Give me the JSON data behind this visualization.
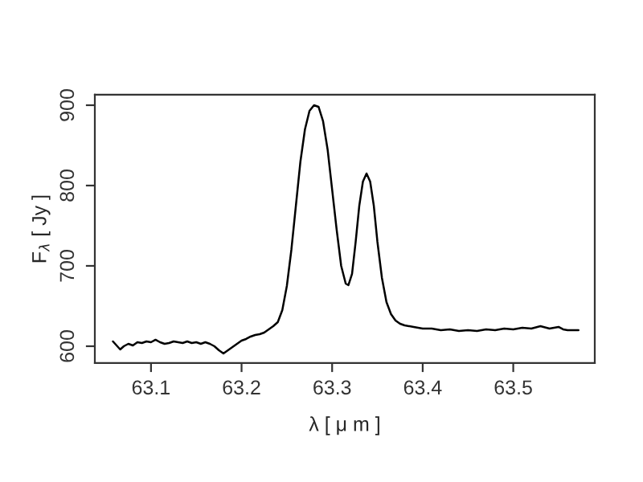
{
  "chart_data": {
    "type": "line",
    "xlabel": "λ [ μ m ]",
    "ylabel": "F$_{λ}$ [ Jy ]",
    "xlim": [
      63.038,
      63.59
    ],
    "xticks": [
      63.1,
      63.2,
      63.3,
      63.4,
      63.5
    ],
    "ylim": [
      579,
      913
    ],
    "yticks": [
      600,
      700,
      800,
      900
    ],
    "grid": false,
    "legend": false,
    "marker": "none",
    "line_style": "solid",
    "series": [
      {
        "color": "#000000",
        "x": [
          63.058,
          63.062,
          63.066,
          63.07,
          63.075,
          63.08,
          63.085,
          63.09,
          63.095,
          63.1,
          63.105,
          63.11,
          63.115,
          63.12,
          63.125,
          63.13,
          63.135,
          63.14,
          63.145,
          63.15,
          63.155,
          63.16,
          63.165,
          63.17,
          63.175,
          63.18,
          63.185,
          63.19,
          63.195,
          63.2,
          63.205,
          63.21,
          63.215,
          63.22,
          63.225,
          63.23,
          63.235,
          63.24,
          63.245,
          63.25,
          63.255,
          63.26,
          63.265,
          63.27,
          63.275,
          63.28,
          63.285,
          63.29,
          63.295,
          63.3,
          63.305,
          63.31,
          63.315,
          63.318,
          63.322,
          63.326,
          63.33,
          63.334,
          63.338,
          63.342,
          63.346,
          63.35,
          63.355,
          63.36,
          63.365,
          63.37,
          63.375,
          63.38,
          63.39,
          63.4,
          63.41,
          63.42,
          63.43,
          63.44,
          63.45,
          63.46,
          63.47,
          63.48,
          63.49,
          63.5,
          63.51,
          63.52,
          63.53,
          63.54,
          63.55,
          63.555,
          63.56,
          63.572
        ],
        "values": [
          606,
          601,
          596,
          600,
          603,
          601,
          605,
          604,
          606,
          605,
          608,
          605,
          603,
          604,
          606,
          605,
          604,
          606,
          604,
          605,
          603,
          605,
          603,
          600,
          595,
          591,
          595,
          599,
          603,
          607,
          609,
          612,
          614,
          615,
          617,
          621,
          625,
          630,
          645,
          675,
          720,
          775,
          830,
          870,
          893,
          900,
          898,
          880,
          845,
          795,
          745,
          700,
          678,
          676,
          690,
          730,
          775,
          805,
          815,
          805,
          775,
          730,
          685,
          655,
          640,
          632,
          628,
          626,
          624,
          622,
          622,
          620,
          621,
          619,
          620,
          619,
          621,
          620,
          622,
          621,
          623,
          622,
          625,
          622,
          624,
          621,
          620,
          620
        ]
      }
    ]
  }
}
